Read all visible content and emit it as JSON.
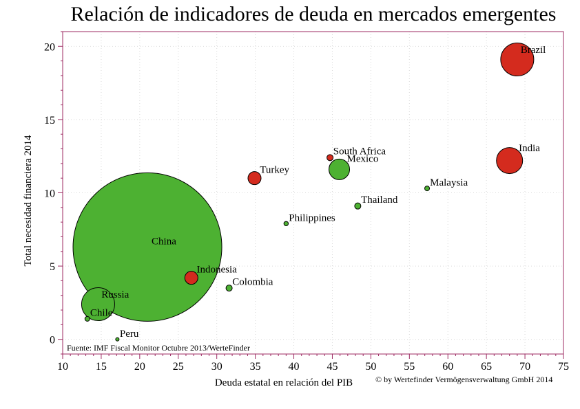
{
  "chart_data": {
    "type": "scatter",
    "title": "Relación de indicadores de deuda en mercados emergentes",
    "xlabel": "Deuda estatal en relación del PIB",
    "ylabel": "Total necesidad financiera 2014",
    "xlim": [
      10,
      75
    ],
    "ylim": [
      -1,
      21
    ],
    "x_ticks": [
      10,
      15,
      20,
      25,
      30,
      35,
      40,
      45,
      50,
      55,
      60,
      65,
      70,
      75
    ],
    "y_ticks": [
      0,
      5,
      10,
      15,
      20
    ],
    "grid": true,
    "bubble_size_note": "bubble area shows relative size; no scale printed",
    "colors": {
      "red": "#d42b1e",
      "green": "#4db132",
      "axis": "#9c2a62",
      "grid": "#d9d9d9"
    },
    "points": [
      {
        "name": "China",
        "x": 21,
        "y": 6.3,
        "size": 108,
        "color": "green"
      },
      {
        "name": "Brazil",
        "x": 69,
        "y": 19.1,
        "size": 24,
        "color": "red"
      },
      {
        "name": "India",
        "x": 68,
        "y": 12.2,
        "size": 19,
        "color": "red"
      },
      {
        "name": "South Africa",
        "x": 44.7,
        "y": 12.4,
        "size": 4.5,
        "color": "red"
      },
      {
        "name": "Mexico",
        "x": 45.9,
        "y": 11.6,
        "size": 15,
        "color": "green"
      },
      {
        "name": "Turkey",
        "x": 34.9,
        "y": 11,
        "size": 9.5,
        "color": "red"
      },
      {
        "name": "Malaysia",
        "x": 57.3,
        "y": 10.3,
        "size": 3.5,
        "color": "green"
      },
      {
        "name": "Thailand",
        "x": 48.3,
        "y": 9.1,
        "size": 4.5,
        "color": "green"
      },
      {
        "name": "Philippines",
        "x": 39,
        "y": 7.9,
        "size": 3.2,
        "color": "green"
      },
      {
        "name": "Indonesia",
        "x": 26.7,
        "y": 4.2,
        "size": 9.5,
        "color": "red"
      },
      {
        "name": "Colombia",
        "x": 31.6,
        "y": 3.5,
        "size": 4.5,
        "color": "green"
      },
      {
        "name": "Russia",
        "x": 14.6,
        "y": 2.4,
        "size": 24,
        "color": "green"
      },
      {
        "name": "Chile",
        "x": 13.2,
        "y": 1.4,
        "size": 3.5,
        "color": "green"
      },
      {
        "name": "Peru",
        "x": 17.1,
        "y": 0,
        "size": 2.5,
        "color": "green"
      }
    ],
    "source_note": "Fuente: IMF Fiscal Monitor Octubre 2013/WerteFinder",
    "copyright": "© by Wertefinder Vermögensverwaltung GmbH 2014"
  }
}
